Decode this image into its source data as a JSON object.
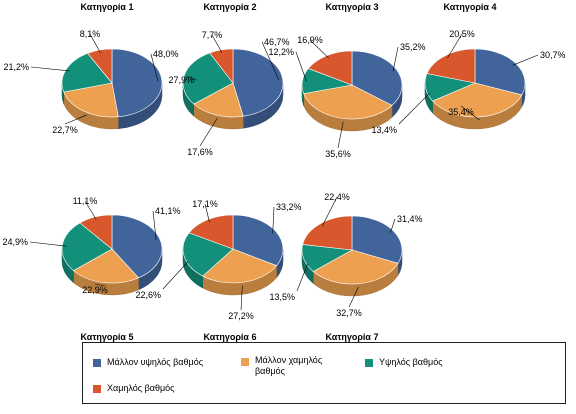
{
  "chart_data": {
    "type": "pie",
    "style": "3d-pie",
    "legend_position": "bottom",
    "series_names": [
      "Μάλλον υψηλός βαθμός",
      "Μάλλον χαμηλός βαθμός",
      "Υψηλός βαθμός",
      "Χαμηλός βαθμός"
    ],
    "colors": [
      "#41659b",
      "#eda04f",
      "#13907a",
      "#d9572c"
    ],
    "pies": [
      {
        "title": "Κατηγορία 1",
        "values": [
          48.0,
          22.7,
          21.2,
          8.1
        ],
        "labels": [
          "48,0%",
          "22,7%",
          "21,2%",
          "8,1%"
        ]
      },
      {
        "title": "Κατηγορία 2",
        "values": [
          46.7,
          17.6,
          27.9,
          7.7
        ],
        "labels": [
          "46,7%",
          "17,6%",
          "27,9%",
          "7,7%"
        ]
      },
      {
        "title": "Κατηγορία 3",
        "values": [
          35.2,
          35.6,
          12.2,
          16.9
        ],
        "labels": [
          "35,2%",
          "35,6%",
          "12,2%",
          "16,9%"
        ]
      },
      {
        "title": "Κατηγορία 4",
        "values": [
          30.7,
          35.4,
          13.4,
          20.5
        ],
        "labels": [
          "30,7%",
          "35,4%",
          "13,4%",
          "20,5%"
        ]
      },
      {
        "title": "Κατηγορία 5",
        "values": [
          41.1,
          22.9,
          24.9,
          11.1
        ],
        "labels": [
          "41,1%",
          "22,9%",
          "24,9%",
          "11,1%"
        ]
      },
      {
        "title": "Κατηγορία 6",
        "values": [
          33.2,
          27.2,
          22.6,
          17.1
        ],
        "labels": [
          "33,2%",
          "27,2%",
          "22,6%",
          "17,1%"
        ]
      },
      {
        "title": "Κατηγορία 7",
        "values": [
          31.4,
          32.7,
          13.5,
          22.4
        ],
        "labels": [
          "31,4%",
          "32,7%",
          "13,5%",
          "22,4%"
        ]
      }
    ]
  }
}
